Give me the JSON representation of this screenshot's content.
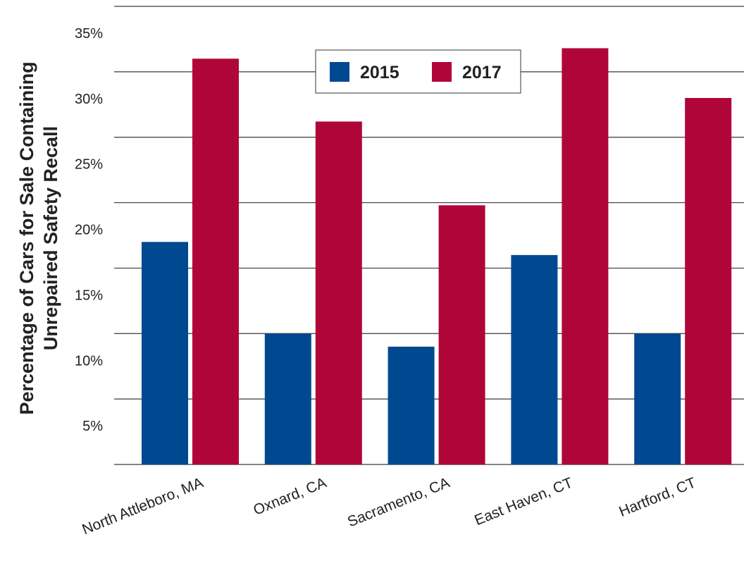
{
  "chart_data": {
    "type": "bar",
    "categories": [
      "North Attleboro, MA",
      "Oxnard, CA",
      "Sacramento, CA",
      "East Haven, CT",
      "Hartford, CT"
    ],
    "series": [
      {
        "name": "2015",
        "color": "#004990",
        "values": [
          17,
          10,
          9,
          16,
          10
        ]
      },
      {
        "name": "2017",
        "color": "#B00539",
        "values": [
          31,
          26.2,
          19.8,
          31.8,
          28
        ]
      }
    ],
    "ylabel_lines": [
      "Percentage of Cars for Sale Containing",
      "Unrepaired Safety  Recall"
    ],
    "xlabel": "",
    "title": "",
    "ylim": [
      0,
      35
    ],
    "yticks": [
      5,
      10,
      15,
      20,
      25,
      30,
      35
    ],
    "ytick_labels": [
      "5%",
      "10%",
      "15%",
      "20%",
      "25%",
      "30%",
      "35%"
    ],
    "grid": true,
    "legend_position": "top-center"
  }
}
